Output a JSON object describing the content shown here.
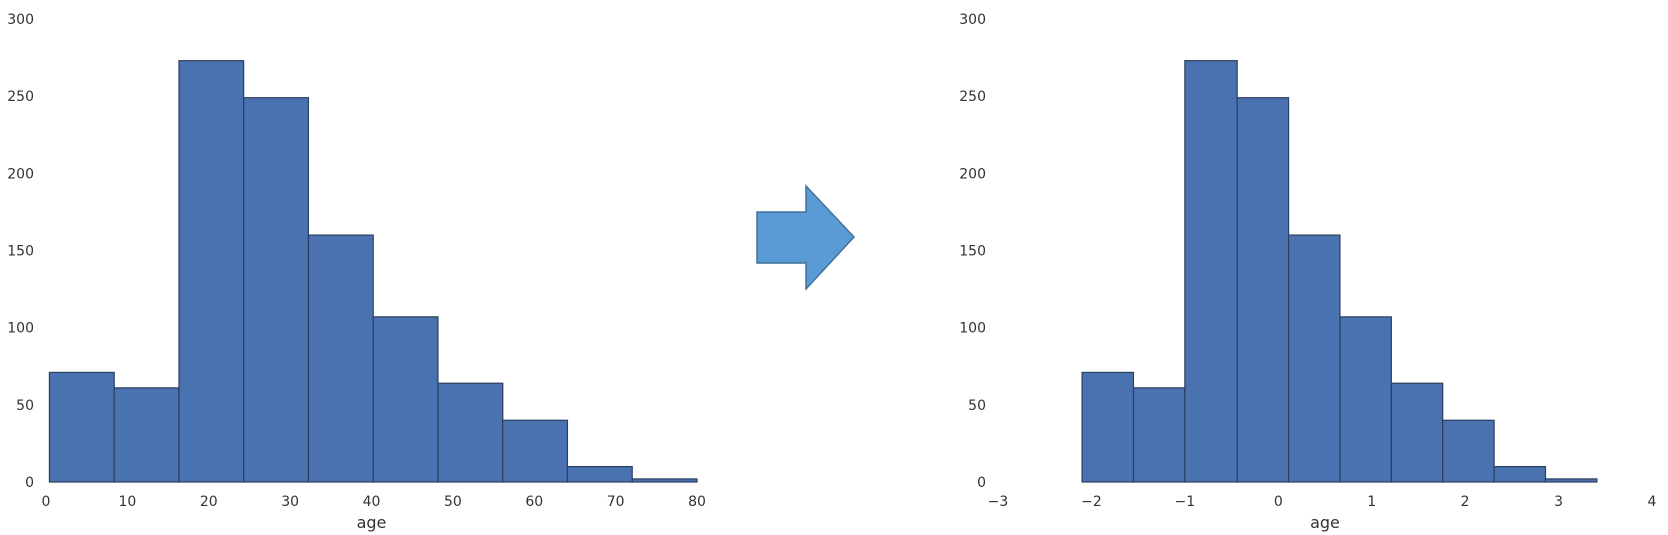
{
  "chart_data": [
    {
      "type": "bar",
      "title": "",
      "xlabel": "age",
      "ylabel": "",
      "bin_edges": [
        0.42,
        8.38,
        16.34,
        24.29,
        32.25,
        40.21,
        48.17,
        56.13,
        64.08,
        72.04,
        80.0
      ],
      "values": [
        71,
        61,
        273,
        249,
        160,
        107,
        64,
        40,
        10,
        2
      ],
      "xlim": [
        0,
        80
      ],
      "ylim": [
        0,
        300
      ],
      "xticks": [
        "0",
        "10",
        "20",
        "30",
        "40",
        "50",
        "60",
        "70",
        "80"
      ],
      "yticks": [
        "0",
        "50",
        "100",
        "150",
        "200",
        "250",
        "300"
      ],
      "bar_color": "#4a72b0",
      "grid": false
    },
    {
      "type": "bar",
      "title": "",
      "xlabel": "age",
      "ylabel": "",
      "bin_edges": [
        -2.1,
        -1.55,
        -1.0,
        -0.44,
        0.11,
        0.66,
        1.21,
        1.76,
        2.31,
        2.86,
        3.41
      ],
      "values": [
        71,
        61,
        273,
        249,
        160,
        107,
        64,
        40,
        10,
        2
      ],
      "xlim": [
        -3,
        4
      ],
      "ylim": [
        0,
        300
      ],
      "xticks": [
        "−3",
        "−2",
        "−1",
        "0",
        "1",
        "2",
        "3",
        "4"
      ],
      "yticks": [
        "0",
        "50",
        "100",
        "150",
        "200",
        "250",
        "300"
      ],
      "bar_color": "#4a72b0",
      "grid": false
    }
  ],
  "arrow": {
    "fill": "#5b9bd5",
    "stroke": "#41719c"
  }
}
